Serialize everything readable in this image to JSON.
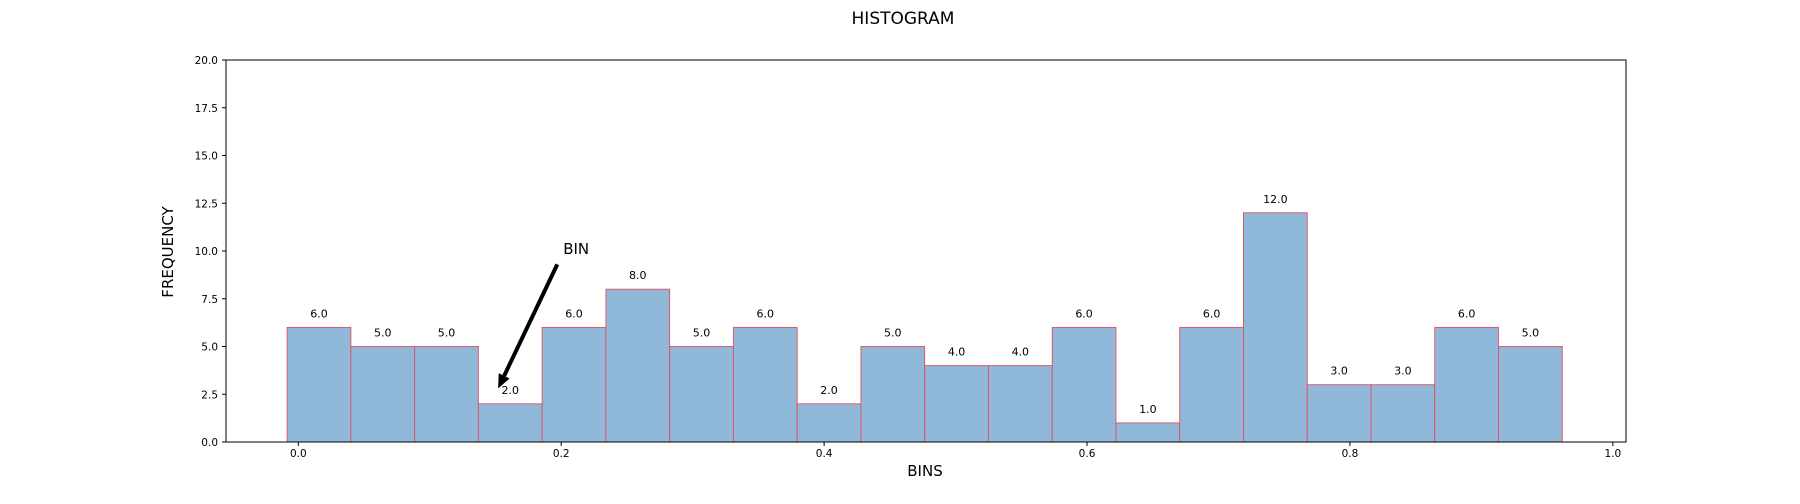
{
  "chart_data": {
    "type": "bar",
    "title": "HISTOGRAM",
    "xlabel": "BINS",
    "ylabel": "FREQUENCY",
    "xlim": [
      -0.055,
      1.01
    ],
    "ylim": [
      0,
      20
    ],
    "x_ticks": [
      0.0,
      0.2,
      0.4,
      0.6,
      0.8,
      1.0
    ],
    "x_tick_labels": [
      "0.0",
      "0.2",
      "0.4",
      "0.6",
      "0.8",
      "1.0"
    ],
    "y_ticks": [
      0.0,
      2.5,
      5.0,
      7.5,
      10.0,
      12.5,
      15.0,
      17.5,
      20.0
    ],
    "y_tick_labels": [
      "0.0",
      "2.5",
      "5.0",
      "7.5",
      "10.0",
      "12.5",
      "15.0",
      "17.5",
      "20.0"
    ],
    "bin_edges": [
      -0.0085,
      0.04,
      0.0885,
      0.137,
      0.1855,
      0.234,
      0.2825,
      0.331,
      0.3795,
      0.428,
      0.4765,
      0.525,
      0.5735,
      0.622,
      0.6705,
      0.719,
      0.7675,
      0.816,
      0.8645,
      0.913,
      0.9615
    ],
    "values": [
      6,
      5,
      5,
      2,
      6,
      8,
      5,
      6,
      2,
      5,
      4,
      4,
      6,
      1,
      6,
      12,
      3,
      3,
      6,
      5
    ],
    "value_labels": [
      "6.0",
      "5.0",
      "5.0",
      "2.0",
      "6.0",
      "8.0",
      "5.0",
      "6.0",
      "2.0",
      "5.0",
      "4.0",
      "4.0",
      "6.0",
      "1.0",
      "6.0",
      "12.0",
      "3.0",
      "3.0",
      "6.0",
      "5.0"
    ],
    "bar_fill": "#8fb8d9",
    "bar_edge": "#e05060",
    "grid": false,
    "annotation": {
      "text": "BIN",
      "text_xy": [
        0.2,
        10.0
      ],
      "arrow_tail": [
        0.197,
        9.3
      ],
      "arrow_head": [
        0.152,
        2.8
      ]
    }
  }
}
